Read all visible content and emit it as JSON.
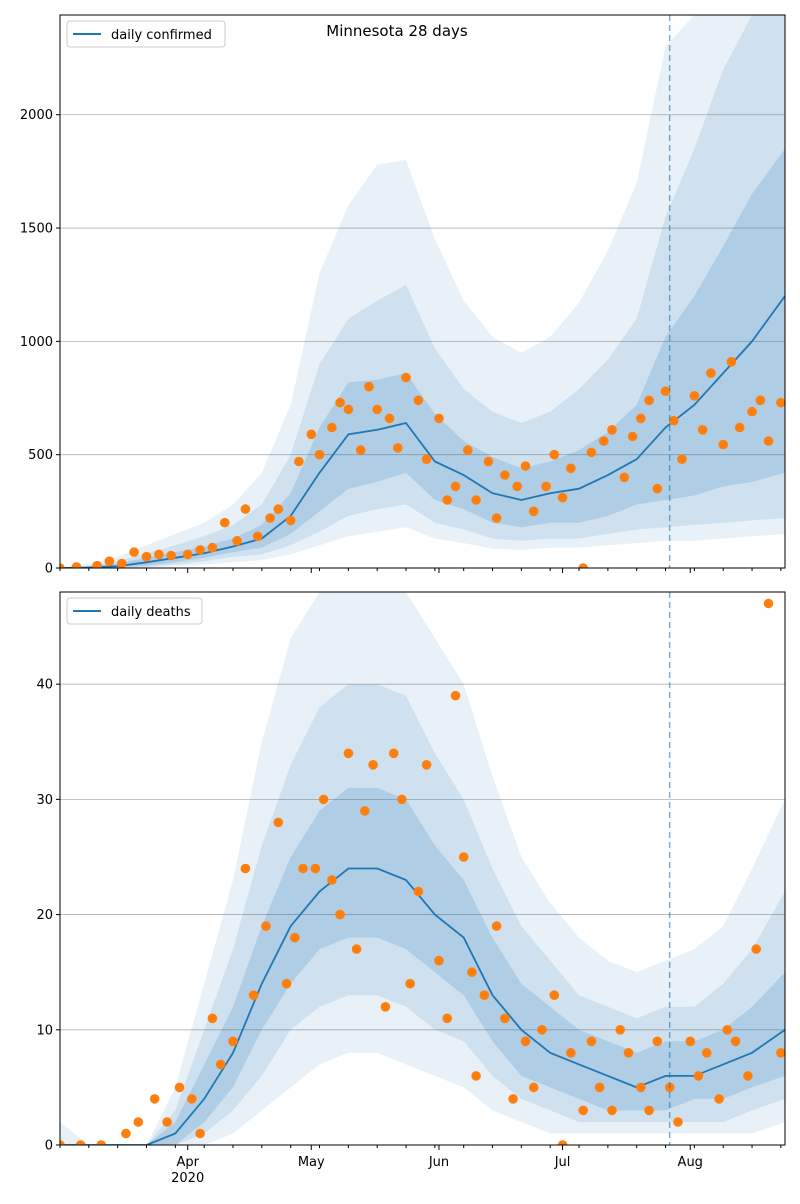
{
  "chart_data": [
    {
      "type": "line",
      "title": "Minnesota 28 days",
      "legend": "daily confirmed",
      "legend_position": "top-left",
      "grid": "horizontal",
      "xlim": [
        "2020-03-01",
        "2020-08-24"
      ],
      "ylim": [
        0,
        2440
      ],
      "yticks": [
        0,
        500,
        1000,
        1500,
        2000
      ],
      "vline_date": "2020-07-27",
      "line_color": "#1f77b4",
      "point_color": "#ff7f0e",
      "band_color": "#1f77b4",
      "model_x": [
        "2020-03-01",
        "2020-03-08",
        "2020-03-15",
        "2020-03-22",
        "2020-03-29",
        "2020-04-05",
        "2020-04-12",
        "2020-04-19",
        "2020-04-26",
        "2020-05-03",
        "2020-05-10",
        "2020-05-17",
        "2020-05-24",
        "2020-05-31",
        "2020-06-07",
        "2020-06-14",
        "2020-06-21",
        "2020-06-28",
        "2020-07-05",
        "2020-07-12",
        "2020-07-19",
        "2020-07-26",
        "2020-08-02",
        "2020-08-09",
        "2020-08-16",
        "2020-08-24"
      ],
      "median": [
        0,
        2,
        8,
        25,
        45,
        65,
        95,
        130,
        230,
        420,
        590,
        610,
        640,
        470,
        410,
        330,
        300,
        330,
        350,
        410,
        480,
        620,
        720,
        860,
        1000,
        1200
      ],
      "bands": [
        {
          "lower": [
            0,
            0,
            2,
            10,
            25,
            45,
            70,
            90,
            150,
            250,
            350,
            380,
            420,
            300,
            260,
            200,
            180,
            200,
            200,
            230,
            280,
            300,
            320,
            360,
            380,
            420
          ],
          "upper": [
            0,
            5,
            20,
            45,
            70,
            95,
            130,
            190,
            330,
            620,
            820,
            830,
            860,
            680,
            560,
            490,
            440,
            470,
            520,
            600,
            720,
            1020,
            1200,
            1420,
            1650,
            1850
          ]
        },
        {
          "lower": [
            0,
            0,
            0,
            5,
            15,
            30,
            50,
            60,
            100,
            160,
            230,
            260,
            280,
            200,
            170,
            130,
            120,
            130,
            130,
            150,
            170,
            180,
            190,
            200,
            210,
            220
          ],
          "upper": [
            0,
            10,
            30,
            65,
            100,
            140,
            190,
            280,
            500,
            900,
            1100,
            1180,
            1250,
            970,
            790,
            690,
            640,
            690,
            790,
            920,
            1100,
            1550,
            1850,
            2200,
            2440,
            2440
          ]
        },
        {
          "lower": [
            0,
            0,
            0,
            2,
            8,
            15,
            25,
            35,
            60,
            100,
            140,
            160,
            180,
            130,
            110,
            85,
            80,
            90,
            90,
            100,
            110,
            120,
            120,
            130,
            140,
            150
          ],
          "upper": [
            0,
            20,
            50,
            100,
            150,
            200,
            280,
            420,
            720,
            1300,
            1600,
            1780,
            1800,
            1450,
            1180,
            1020,
            950,
            1020,
            1170,
            1400,
            1700,
            2300,
            2440,
            2440,
            2440,
            2440
          ]
        }
      ],
      "observed": {
        "x": [
          "2020-03-01",
          "2020-03-05",
          "2020-03-10",
          "2020-03-13",
          "2020-03-16",
          "2020-03-19",
          "2020-03-22",
          "2020-03-25",
          "2020-03-28",
          "2020-04-01",
          "2020-04-04",
          "2020-04-07",
          "2020-04-10",
          "2020-04-13",
          "2020-04-15",
          "2020-04-18",
          "2020-04-21",
          "2020-04-23",
          "2020-04-26",
          "2020-04-28",
          "2020-05-01",
          "2020-05-03",
          "2020-05-06",
          "2020-05-08",
          "2020-05-10",
          "2020-05-13",
          "2020-05-15",
          "2020-05-17",
          "2020-05-20",
          "2020-05-22",
          "2020-05-24",
          "2020-05-27",
          "2020-05-29",
          "2020-06-01",
          "2020-06-03",
          "2020-06-05",
          "2020-06-08",
          "2020-06-10",
          "2020-06-13",
          "2020-06-15",
          "2020-06-17",
          "2020-06-20",
          "2020-06-22",
          "2020-06-24",
          "2020-06-27",
          "2020-06-29",
          "2020-07-01",
          "2020-07-03",
          "2020-07-06",
          "2020-07-08",
          "2020-07-11",
          "2020-07-13",
          "2020-07-16",
          "2020-07-18",
          "2020-07-20",
          "2020-07-22",
          "2020-07-24",
          "2020-07-26",
          "2020-07-28",
          "2020-07-30",
          "2020-08-02",
          "2020-08-04",
          "2020-08-06",
          "2020-08-09",
          "2020-08-11",
          "2020-08-13",
          "2020-08-16",
          "2020-08-18",
          "2020-08-20",
          "2020-08-23"
        ],
        "y": [
          0,
          5,
          10,
          30,
          20,
          70,
          50,
          60,
          55,
          60,
          80,
          90,
          200,
          120,
          260,
          140,
          220,
          260,
          210,
          470,
          590,
          500,
          620,
          730,
          700,
          520,
          800,
          700,
          660,
          530,
          840,
          740,
          480,
          660,
          300,
          360,
          520,
          300,
          470,
          220,
          410,
          360,
          450,
          250,
          360,
          500,
          310,
          440,
          0,
          510,
          560,
          610,
          400,
          580,
          660,
          740,
          350,
          780,
          650,
          480,
          760,
          610,
          860,
          545,
          910,
          620,
          690,
          740,
          560,
          730
        ]
      }
    },
    {
      "type": "line",
      "legend": "daily deaths",
      "legend_position": "top-left",
      "grid": "horizontal",
      "xlim": [
        "2020-03-01",
        "2020-08-24"
      ],
      "ylim": [
        0,
        48
      ],
      "yticks": [
        0,
        10,
        20,
        30,
        40
      ],
      "xticks_major": [
        {
          "label": "Apr",
          "sub": "2020",
          "date": "2020-04-01"
        },
        {
          "label": "May",
          "date": "2020-05-01"
        },
        {
          "label": "Jun",
          "date": "2020-06-01"
        },
        {
          "label": "Jul",
          "date": "2020-07-01"
        },
        {
          "label": "Aug",
          "date": "2020-08-01"
        }
      ],
      "vline_date": "2020-07-27",
      "line_color": "#1f77b4",
      "point_color": "#ff7f0e",
      "band_color": "#1f77b4",
      "model_x": [
        "2020-03-01",
        "2020-03-08",
        "2020-03-15",
        "2020-03-22",
        "2020-03-29",
        "2020-04-05",
        "2020-04-12",
        "2020-04-19",
        "2020-04-26",
        "2020-05-03",
        "2020-05-10",
        "2020-05-17",
        "2020-05-24",
        "2020-05-31",
        "2020-06-07",
        "2020-06-14",
        "2020-06-21",
        "2020-06-28",
        "2020-07-05",
        "2020-07-12",
        "2020-07-19",
        "2020-07-26",
        "2020-08-02",
        "2020-08-09",
        "2020-08-16",
        "2020-08-24"
      ],
      "median": [
        0,
        0,
        0,
        0,
        1,
        4,
        8,
        14,
        19,
        22,
        24,
        24,
        23,
        20,
        18,
        13,
        10,
        8,
        7,
        6,
        5,
        6,
        6,
        7,
        8,
        10
      ],
      "bands": [
        {
          "lower": [
            0,
            0,
            0,
            0,
            0,
            2,
            5,
            10,
            14,
            17,
            18,
            18,
            17,
            15,
            13,
            9,
            6,
            5,
            4,
            3,
            3,
            3,
            4,
            4,
            5,
            6
          ],
          "upper": [
            0,
            0,
            0,
            0,
            2,
            7,
            12,
            19,
            25,
            29,
            31,
            31,
            30,
            26,
            23,
            18,
            14,
            12,
            10,
            9,
            8,
            9,
            9,
            10,
            12,
            15
          ]
        },
        {
          "lower": [
            0,
            0,
            0,
            0,
            0,
            1,
            3,
            6,
            10,
            12,
            13,
            13,
            12,
            10,
            9,
            6,
            4,
            3,
            2,
            2,
            2,
            2,
            2,
            2,
            3,
            4
          ],
          "upper": [
            0,
            0,
            0,
            0,
            3,
            10,
            17,
            26,
            33,
            38,
            40,
            40,
            39,
            34,
            30,
            24,
            19,
            16,
            13,
            12,
            11,
            12,
            12,
            14,
            17,
            22
          ]
        },
        {
          "lower": [
            0,
            0,
            0,
            0,
            0,
            0,
            1,
            3,
            5,
            7,
            8,
            8,
            7,
            6,
            5,
            3,
            2,
            1,
            1,
            1,
            1,
            1,
            1,
            1,
            1,
            2
          ],
          "upper": [
            2,
            0,
            0,
            0,
            5,
            14,
            23,
            35,
            44,
            48,
            48,
            48,
            48,
            44,
            40,
            32,
            25,
            21,
            18,
            16,
            15,
            16,
            17,
            19,
            24,
            30
          ]
        }
      ],
      "observed": {
        "x": [
          "2020-03-01",
          "2020-03-06",
          "2020-03-11",
          "2020-03-17",
          "2020-03-20",
          "2020-03-24",
          "2020-03-27",
          "2020-03-30",
          "2020-04-02",
          "2020-04-04",
          "2020-04-07",
          "2020-04-09",
          "2020-04-12",
          "2020-04-15",
          "2020-04-17",
          "2020-04-20",
          "2020-04-23",
          "2020-04-25",
          "2020-04-27",
          "2020-04-29",
          "2020-05-02",
          "2020-05-04",
          "2020-05-06",
          "2020-05-08",
          "2020-05-10",
          "2020-05-12",
          "2020-05-14",
          "2020-05-16",
          "2020-05-19",
          "2020-05-21",
          "2020-05-23",
          "2020-05-25",
          "2020-05-27",
          "2020-05-29",
          "2020-06-01",
          "2020-06-03",
          "2020-06-05",
          "2020-06-07",
          "2020-06-09",
          "2020-06-10",
          "2020-06-12",
          "2020-06-15",
          "2020-06-17",
          "2020-06-19",
          "2020-06-22",
          "2020-06-24",
          "2020-06-26",
          "2020-06-29",
          "2020-07-01",
          "2020-07-03",
          "2020-07-06",
          "2020-07-08",
          "2020-07-10",
          "2020-07-13",
          "2020-07-15",
          "2020-07-17",
          "2020-07-20",
          "2020-07-22",
          "2020-07-24",
          "2020-07-27",
          "2020-07-29",
          "2020-08-01",
          "2020-08-03",
          "2020-08-05",
          "2020-08-08",
          "2020-08-10",
          "2020-08-12",
          "2020-08-15",
          "2020-08-17",
          "2020-08-20",
          "2020-08-23"
        ],
        "y": [
          0,
          0,
          0,
          1,
          2,
          4,
          2,
          5,
          4,
          1,
          11,
          7,
          9,
          24,
          13,
          19,
          28,
          14,
          18,
          24,
          24,
          30,
          23,
          20,
          34,
          17,
          29,
          33,
          12,
          34,
          30,
          14,
          22,
          33,
          16,
          11,
          39,
          25,
          15,
          6,
          13,
          19,
          11,
          4,
          9,
          5,
          10,
          13,
          0,
          8,
          3,
          9,
          5,
          3,
          10,
          8,
          5,
          3,
          9,
          5,
          2,
          9,
          6,
          8,
          4,
          10,
          9,
          6,
          17,
          47,
          8
        ]
      }
    }
  ]
}
